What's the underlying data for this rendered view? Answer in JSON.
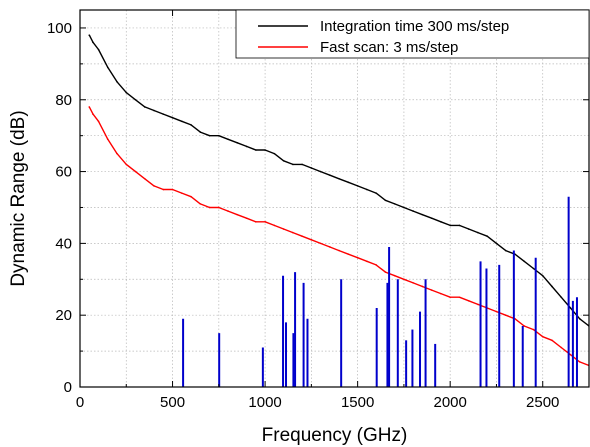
{
  "chart_data": {
    "type": "line",
    "title": "",
    "xlabel": "Frequency (GHz)",
    "ylabel": "Dynamic Range (dB)",
    "xlim": [
      0,
      2750
    ],
    "ylim": [
      0,
      105
    ],
    "xticks": [
      0,
      500,
      1000,
      1500,
      2000,
      2500
    ],
    "yticks": [
      0,
      20,
      40,
      60,
      80,
      100
    ],
    "grid": true,
    "legend_position": "top-right",
    "series": [
      {
        "name": "Integration time 300 ms/step",
        "color": "#000000",
        "x": [
          50,
          70,
          100,
          150,
          200,
          250,
          300,
          350,
          400,
          450,
          500,
          550,
          600,
          650,
          700,
          750,
          800,
          850,
          900,
          950,
          1000,
          1050,
          1100,
          1150,
          1200,
          1250,
          1300,
          1350,
          1400,
          1450,
          1500,
          1550,
          1600,
          1650,
          1700,
          1750,
          1800,
          1850,
          1900,
          1950,
          2000,
          2050,
          2100,
          2150,
          2200,
          2250,
          2300,
          2350,
          2400,
          2450,
          2500,
          2550,
          2600,
          2650,
          2700,
          2750
        ],
        "y": [
          98,
          96,
          94,
          89,
          85,
          82,
          80,
          78,
          77,
          76,
          75,
          74,
          73,
          71,
          70,
          70,
          69,
          68,
          67,
          66,
          66,
          65,
          63,
          62,
          62,
          61,
          60,
          59,
          58,
          57,
          56,
          55,
          54,
          52,
          51,
          50,
          49,
          48,
          47,
          46,
          45,
          45,
          44,
          43,
          42,
          40,
          38,
          37,
          35,
          33,
          31,
          28,
          25,
          22,
          19,
          17
        ]
      },
      {
        "name": "Fast scan: 3 ms/step",
        "color": "#ff0000",
        "x": [
          50,
          70,
          100,
          150,
          200,
          250,
          300,
          350,
          400,
          450,
          500,
          550,
          600,
          650,
          700,
          750,
          800,
          850,
          900,
          950,
          1000,
          1050,
          1100,
          1150,
          1200,
          1250,
          1300,
          1350,
          1400,
          1450,
          1500,
          1550,
          1600,
          1650,
          1700,
          1750,
          1800,
          1850,
          1900,
          1950,
          2000,
          2050,
          2100,
          2150,
          2200,
          2250,
          2300,
          2350,
          2400,
          2450,
          2500,
          2550,
          2600,
          2650,
          2700,
          2750
        ],
        "y": [
          78,
          76,
          74,
          69,
          65,
          62,
          60,
          58,
          56,
          55,
          55,
          54,
          53,
          51,
          50,
          50,
          49,
          48,
          47,
          46,
          46,
          45,
          44,
          43,
          42,
          41,
          40,
          39,
          38,
          37,
          36,
          35,
          34,
          32,
          31,
          30,
          29,
          28,
          27,
          26,
          25,
          25,
          24,
          23,
          22,
          21,
          20,
          19,
          17,
          16,
          14,
          13,
          11,
          9,
          7,
          6
        ]
      },
      {
        "name": "",
        "color": "#0000cc",
        "type": "sticks",
        "x": [
          557,
          752,
          988,
          1097,
          1113,
          1153,
          1162,
          1208,
          1229,
          1411,
          1603,
          1661,
          1670,
          1717,
          1762,
          1796,
          1837,
          1867,
          1919,
          2164,
          2196,
          2265,
          2344,
          2392,
          2462,
          2640,
          2663,
          2685
        ],
        "y": [
          19,
          15,
          11,
          31,
          18,
          15,
          32,
          29,
          19,
          30,
          22,
          29,
          39,
          30,
          13,
          16,
          21,
          30,
          12,
          35,
          33,
          34,
          38,
          17,
          36,
          53,
          24,
          25
        ]
      }
    ]
  }
}
